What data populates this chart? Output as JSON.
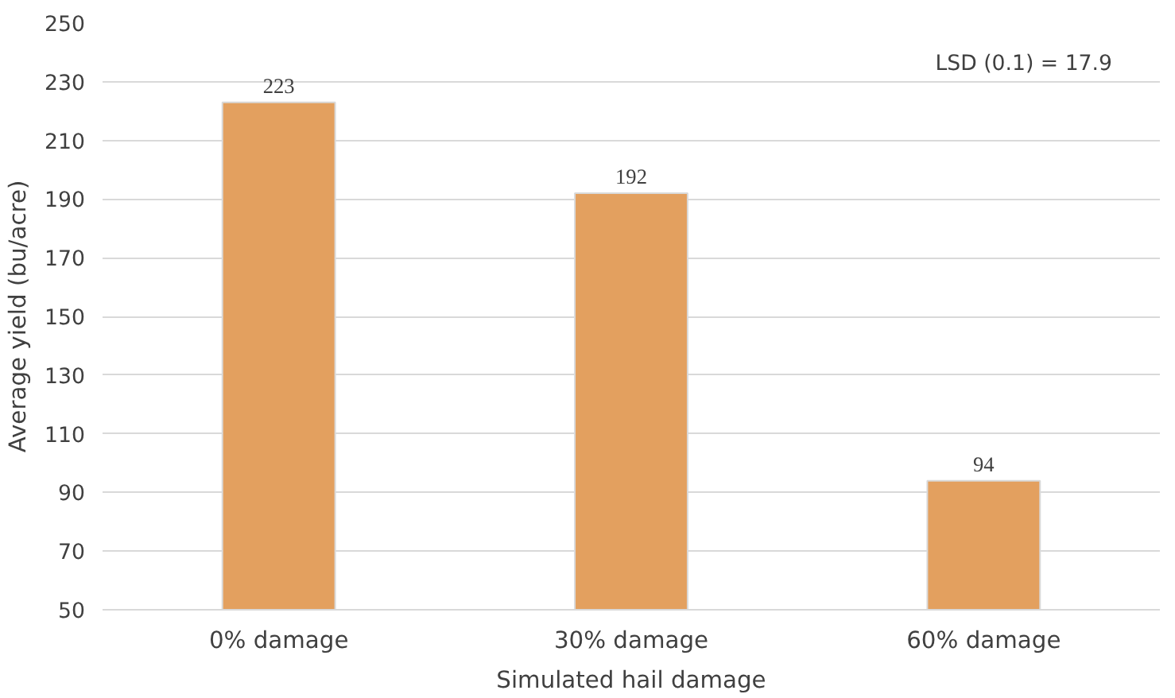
{
  "chart_data": {
    "type": "bar",
    "xlabel": "Simulated hail damage",
    "ylabel": "Average yield (bu/acre)",
    "categories": [
      "0% damage",
      "30% damage",
      "60% damage"
    ],
    "values": [
      223,
      192,
      94
    ],
    "color": "#e3a05f",
    "ylim": [
      50,
      250
    ],
    "yticks": [
      50,
      70,
      90,
      110,
      130,
      150,
      170,
      190,
      210,
      230,
      250
    ],
    "grid": "y",
    "data_labels": true,
    "annotations": [
      "LSD (0.1) = 17.9"
    ]
  }
}
